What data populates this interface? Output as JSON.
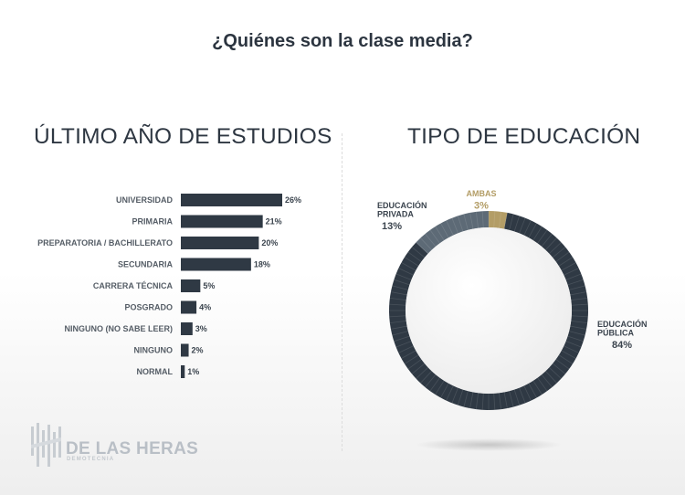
{
  "title": "¿Quiénes son la clase media?",
  "colors": {
    "bar": "#2f3944",
    "publica": "#2f3944",
    "privada": "#5d6a76",
    "ambas": "#b39d66"
  },
  "chart_data": [
    {
      "type": "bar",
      "orientation": "horizontal",
      "title": "ÚLTIMO AÑO DE ESTUDIOS",
      "categories": [
        "UNIVERSIDAD",
        "PRIMARIA",
        "PREPARATORIA / BACHILLERATO",
        "SECUNDARIA",
        "CARRERA TÉCNICA",
        "POSGRADO",
        "NINGUNO (NO SABE LEER)",
        "NINGUNO",
        "NORMAL"
      ],
      "values": [
        26,
        21,
        20,
        18,
        5,
        4,
        3,
        2,
        1
      ],
      "value_labels": [
        "26%",
        "21%",
        "20%",
        "18%",
        "5%",
        "4%",
        "3%",
        "2%",
        "1%"
      ],
      "grid": false
    },
    {
      "type": "pie",
      "style": "donut",
      "title": "TIPO DE EDUCACIÓN",
      "slices": [
        {
          "label": "AMBAS",
          "value": 3,
          "value_label": "3%",
          "color": "#b39d66"
        },
        {
          "label": "EDUCACIÓN PÚBLICA",
          "label_lines": [
            "EDUCACIÓN",
            "PÚBLICA"
          ],
          "value": 84,
          "value_label": "84%",
          "color": "#2f3944"
        },
        {
          "label": "EDUCACIÓN PRIVADA",
          "label_lines": [
            "EDUCACIÓN",
            "PRIVADA"
          ],
          "value": 13,
          "value_label": "13%",
          "color": "#5d6a76"
        }
      ]
    }
  ],
  "logo": {
    "name": "DE LAS HERAS",
    "subtitle": "DEMOTECNIA",
    "icon": "bars-monogram-icon"
  }
}
